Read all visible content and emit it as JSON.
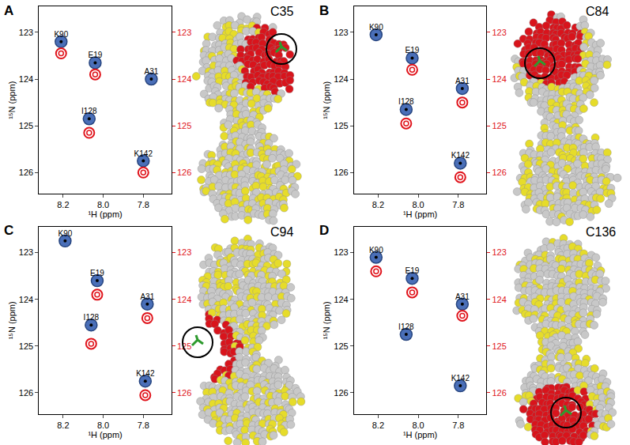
{
  "chart_data": [
    {
      "type": "scatter",
      "panel": "A",
      "title": "C35",
      "x_label": "¹H (ppm)",
      "y_label": "¹⁵N (ppm)",
      "xlim": [
        8.32,
        7.66
      ],
      "xticks": [
        8.2,
        {
          "value": 8.0,
          "label": "8.0"
        },
        7.8
      ],
      "ylim": [
        122.45,
        126.45
      ],
      "yticks": [
        123,
        124,
        125,
        126
      ],
      "y2lim": [
        122.45,
        126.45
      ],
      "y2ticks": [
        123,
        124,
        125,
        126
      ],
      "point_labels": [
        "K90",
        "E19",
        "A31",
        "I128",
        "K142"
      ],
      "x": [
        8.21,
        8.04,
        7.76,
        8.07,
        7.8
      ],
      "series": [
        {
          "color": "#4a6fb8",
          "marker": "filled",
          "values": [
            123.2,
            123.65,
            124.0,
            124.85,
            125.75
          ]
        },
        {
          "color": "#e0141c",
          "marker": "ring",
          "axis": "y2",
          "values": [
            123.45,
            123.9,
            null,
            125.15,
            126.0
          ]
        }
      ]
    },
    {
      "type": "scatter",
      "panel": "B",
      "title": "C84",
      "x_label": "¹H (ppm)",
      "y_label": "¹⁵N (ppm)",
      "xlim": [
        8.32,
        7.66
      ],
      "xticks": [
        8.2,
        {
          "value": 8.0,
          "label": "8.0"
        },
        7.8
      ],
      "ylim": [
        122.45,
        126.45
      ],
      "yticks": [
        123,
        124,
        125,
        126
      ],
      "y2lim": [
        122.45,
        126.45
      ],
      "y2ticks": [
        123,
        124,
        125,
        126
      ],
      "point_labels": [
        "K90",
        "E19",
        "A31",
        "I128",
        "K142"
      ],
      "x": [
        8.21,
        8.03,
        7.78,
        8.06,
        7.79
      ],
      "series": [
        {
          "color": "#4a6fb8",
          "marker": "filled",
          "values": [
            123.05,
            123.55,
            124.2,
            124.65,
            125.8
          ]
        },
        {
          "color": "#e0141c",
          "marker": "ring",
          "axis": "y2",
          "values": [
            null,
            123.8,
            124.5,
            124.95,
            126.1
          ]
        }
      ]
    },
    {
      "type": "scatter",
      "panel": "C",
      "title": "C94",
      "x_label": "¹H (ppm)",
      "y_label": "¹⁵N (ppm)",
      "xlim": [
        8.32,
        7.66
      ],
      "xticks": [
        8.2,
        {
          "value": 8.0,
          "label": "8.0"
        },
        7.8
      ],
      "ylim": [
        122.45,
        126.45
      ],
      "yticks": [
        123,
        124,
        125,
        126
      ],
      "y2lim": [
        122.45,
        126.45
      ],
      "y2ticks": [
        123,
        124,
        125,
        126
      ],
      "point_labels": [
        "K90",
        "E19",
        "A31",
        "I128",
        "K142"
      ],
      "x": [
        8.19,
        8.03,
        7.78,
        8.06,
        7.79
      ],
      "series": [
        {
          "color": "#4a6fb8",
          "marker": "filled",
          "values": [
            122.75,
            123.6,
            124.1,
            124.55,
            125.75
          ]
        },
        {
          "color": "#e0141c",
          "marker": "ring",
          "axis": "y2",
          "values": [
            null,
            123.9,
            124.4,
            124.95,
            126.05
          ]
        }
      ]
    },
    {
      "type": "scatter",
      "panel": "D",
      "title": "C136",
      "x_label": "¹H (ppm)",
      "y_label": "¹⁵N (ppm)",
      "xlim": [
        8.32,
        7.66
      ],
      "xticks": [
        8.2,
        {
          "value": 8.0,
          "label": "8.0"
        },
        7.8
      ],
      "ylim": [
        122.45,
        126.45
      ],
      "yticks": [
        123,
        124,
        125,
        126
      ],
      "y2lim": [
        122.45,
        126.45
      ],
      "y2ticks": [
        123,
        124,
        125,
        126
      ],
      "point_labels": [
        "K90",
        "E19",
        "A31",
        "I128",
        "K142"
      ],
      "x": [
        8.21,
        8.03,
        7.78,
        8.06,
        7.79
      ],
      "series": [
        {
          "color": "#4a6fb8",
          "marker": "filled",
          "values": [
            123.1,
            123.55,
            124.1,
            124.75,
            125.85
          ]
        },
        {
          "color": "#e0141c",
          "marker": "ring",
          "axis": "y2",
          "values": [
            123.4,
            123.85,
            124.35,
            null,
            null
          ]
        }
      ]
    }
  ]
}
